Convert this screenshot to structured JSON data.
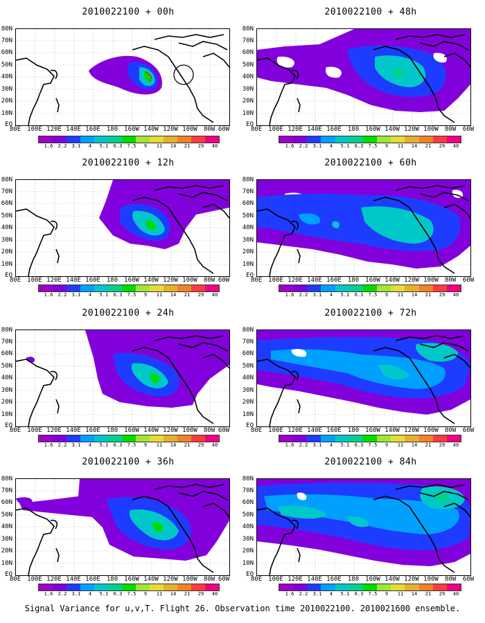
{
  "panels": [
    {
      "title": "2010022100 + 00h"
    },
    {
      "title": "2010022100 + 48h"
    },
    {
      "title": "2010022100 + 12h"
    },
    {
      "title": "2010022100 + 60h"
    },
    {
      "title": "2010022100 + 24h"
    },
    {
      "title": "2010022100 + 72h"
    },
    {
      "title": "2010022100 + 36h"
    },
    {
      "title": "2010022100 + 84h"
    }
  ],
  "lat_labels": [
    "80N",
    "70N",
    "60N",
    "50N",
    "40N",
    "30N",
    "20N",
    "10N",
    "EQ"
  ],
  "lon_labels": [
    "80E",
    "100E",
    "120E",
    "140E",
    "160E",
    "180",
    "160W",
    "140W",
    "120W",
    "100W",
    "80W",
    "60W"
  ],
  "colorbar": {
    "labels": [
      "1.6",
      "2.2",
      "3.1",
      "4",
      "5.1",
      "6.3",
      "7.5",
      "9",
      "11",
      "14",
      "21",
      "29",
      "40"
    ],
    "colors": [
      "#a000c8",
      "#8200dc",
      "#1e3cff",
      "#00a0ff",
      "#00c8c8",
      "#00d28c",
      "#00dc00",
      "#a0e632",
      "#e6dc32",
      "#e6af2d",
      "#f08228",
      "#fa3c3c",
      "#f00082"
    ]
  },
  "caption": "Signal Variance for u,v,T. Flight 26. Observation time 2010022100. 2010021600 ensemble."
}
